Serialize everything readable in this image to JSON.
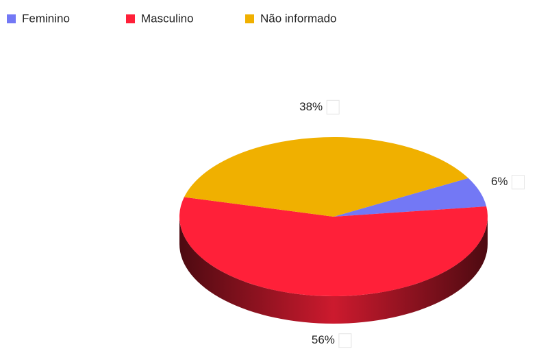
{
  "chart_data": {
    "type": "pie",
    "categories": [
      "Feminino",
      "Masculino",
      "Não informado"
    ],
    "values": [
      6,
      56,
      38
    ],
    "value_labels": [
      "6%",
      "56%",
      "38%"
    ],
    "colors": [
      "#7378f5",
      "#ff2039",
      "#f0b000"
    ],
    "legend": "top",
    "three_d": true
  }
}
